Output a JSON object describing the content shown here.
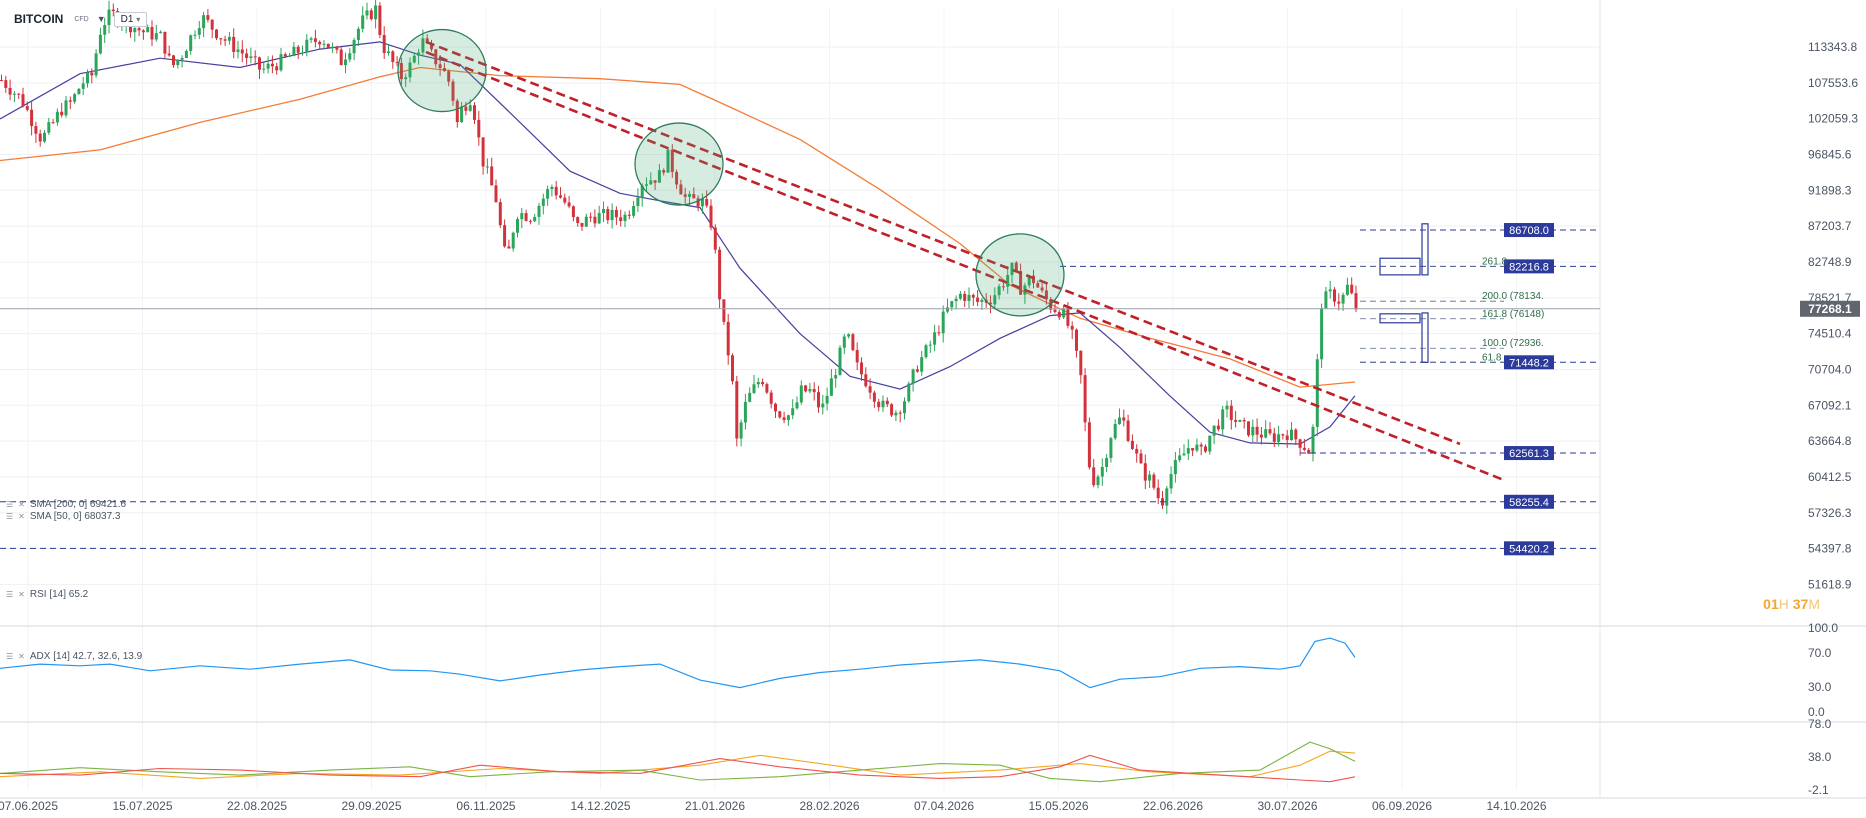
{
  "header": {
    "symbol": "BITCOIN",
    "instrument": "CFD",
    "timeframe": "D1"
  },
  "indicators": {
    "sma200": {
      "label": "SMA [200, 0] 69421.6",
      "color": "#f47c37"
    },
    "sma50": {
      "label": "SMA [50, 0] 68037.3",
      "color": "#4a3e9e"
    },
    "rsi": {
      "label": "RSI [14] 65.2",
      "color": "#2196f3"
    },
    "adx": {
      "label": "ADX [14] 42.7, 32.6, 13.9",
      "colors": [
        "#f5a623",
        "#7cb342",
        "#ef5350"
      ]
    }
  },
  "countdown": {
    "hours": "01",
    "h": "H",
    "minutes": "37",
    "m": "M"
  },
  "colors": {
    "up": "#2aa55a",
    "down": "#d2323c",
    "trend": "#c0202a",
    "level": "#2b3a9b",
    "fib": "#2f6e4a",
    "circle": "#2e7d5b"
  },
  "chart_data": {
    "type": "candlestick",
    "price_axis": {
      "ticks": [
        "113343.8",
        "107553.6",
        "102059.3",
        "96845.6",
        "91898.3",
        "87203.7",
        "82748.9",
        "78521.7",
        "74510.4",
        "70704.0",
        "67092.1",
        "63664.8",
        "60412.5",
        "57326.3",
        "54397.8",
        "51618.9"
      ]
    },
    "x_axis": {
      "ticks": [
        "07.06.2025",
        "15.07.2025",
        "22.08.2025",
        "29.09.2025",
        "06.11.2025",
        "14.12.2025",
        "21.01.2026",
        "28.02.2026",
        "07.04.2026",
        "15.05.2026",
        "22.06.2026",
        "30.07.2026",
        "06.09.2026",
        "14.10.2026"
      ]
    },
    "price_series": [
      [
        0,
        108000
      ],
      [
        20,
        105000
      ],
      [
        40,
        99000
      ],
      [
        50,
        101000
      ],
      [
        60,
        103500
      ],
      [
        70,
        104500
      ],
      [
        80,
        107500
      ],
      [
        90,
        108500
      ],
      [
        100,
        117000
      ],
      [
        110,
        119000
      ],
      [
        120,
        118000
      ],
      [
        140,
        116000
      ],
      [
        160,
        115000
      ],
      [
        170,
        110000
      ],
      [
        180,
        112000
      ],
      [
        200,
        118500
      ],
      [
        220,
        115000
      ],
      [
        240,
        112500
      ],
      [
        260,
        109500
      ],
      [
        280,
        111000
      ],
      [
        300,
        113000
      ],
      [
        320,
        115000
      ],
      [
        340,
        111000
      ],
      [
        350,
        114000
      ],
      [
        360,
        117500
      ],
      [
        375,
        120000
      ],
      [
        380,
        114000
      ],
      [
        390,
        111000
      ],
      [
        400,
        108500
      ],
      [
        410,
        110500
      ],
      [
        420,
        114500
      ],
      [
        430,
        112000
      ],
      [
        440,
        110000
      ],
      [
        450,
        107000
      ],
      [
        455,
        101000
      ],
      [
        460,
        103500
      ],
      [
        470,
        105500
      ],
      [
        480,
        96500
      ],
      [
        495,
        90500
      ],
      [
        500,
        86000
      ],
      [
        505,
        82500
      ],
      [
        515,
        89000
      ],
      [
        530,
        88500
      ],
      [
        550,
        92500
      ],
      [
        565,
        90000
      ],
      [
        575,
        87000
      ],
      [
        590,
        88500
      ],
      [
        610,
        88500
      ],
      [
        625,
        88500
      ],
      [
        640,
        93000
      ],
      [
        660,
        94000
      ],
      [
        665,
        97000
      ],
      [
        675,
        93500
      ],
      [
        685,
        90500
      ],
      [
        700,
        90500
      ],
      [
        710,
        87500
      ],
      [
        715,
        82500
      ],
      [
        720,
        76500
      ],
      [
        730,
        70500
      ],
      [
        735,
        63500
      ],
      [
        745,
        67500
      ],
      [
        760,
        70000
      ],
      [
        775,
        66500
      ],
      [
        790,
        66000
      ],
      [
        800,
        68500
      ],
      [
        810,
        68500
      ],
      [
        820,
        66500
      ],
      [
        835,
        71000
      ],
      [
        845,
        74500
      ],
      [
        855,
        71000
      ],
      [
        865,
        69500
      ],
      [
        880,
        67000
      ],
      [
        895,
        66500
      ],
      [
        905,
        68000
      ],
      [
        915,
        71000
      ],
      [
        930,
        73500
      ],
      [
        945,
        77000
      ],
      [
        960,
        79000
      ],
      [
        975,
        78000
      ],
      [
        990,
        78500
      ],
      [
        1000,
        80000
      ],
      [
        1010,
        82000
      ],
      [
        1020,
        79500
      ],
      [
        1030,
        81000
      ],
      [
        1040,
        79000
      ],
      [
        1050,
        77500
      ],
      [
        1060,
        77000
      ],
      [
        1070,
        74500
      ],
      [
        1080,
        69500
      ],
      [
        1085,
        63500
      ],
      [
        1090,
        60000
      ],
      [
        1100,
        61000
      ],
      [
        1110,
        64500
      ],
      [
        1120,
        66000
      ],
      [
        1130,
        63500
      ],
      [
        1140,
        61000
      ],
      [
        1150,
        60000
      ],
      [
        1160,
        58000
      ],
      [
        1165,
        60000
      ],
      [
        1175,
        61500
      ],
      [
        1190,
        63500
      ],
      [
        1200,
        62500
      ],
      [
        1210,
        64500
      ],
      [
        1225,
        66500
      ],
      [
        1240,
        65000
      ],
      [
        1255,
        64500
      ],
      [
        1270,
        64000
      ],
      [
        1285,
        64500
      ],
      [
        1300,
        63500
      ],
      [
        1310,
        62500
      ],
      [
        1315,
        70000
      ],
      [
        1320,
        78000
      ],
      [
        1330,
        79000
      ],
      [
        1340,
        78000
      ],
      [
        1345,
        80000
      ],
      [
        1355,
        77268.1
      ]
    ],
    "sma200_series": [
      [
        0,
        96000
      ],
      [
        100,
        97500
      ],
      [
        200,
        101500
      ],
      [
        300,
        105000
      ],
      [
        380,
        108500
      ],
      [
        420,
        110000
      ],
      [
        500,
        108700
      ],
      [
        600,
        108200
      ],
      [
        680,
        107300
      ],
      [
        720,
        104500
      ],
      [
        800,
        99000
      ],
      [
        880,
        92000
      ],
      [
        960,
        85000
      ],
      [
        1010,
        80000
      ],
      [
        1080,
        76200
      ],
      [
        1150,
        74000
      ],
      [
        1230,
        71800
      ],
      [
        1300,
        68900
      ],
      [
        1355,
        69421.6
      ]
    ],
    "sma50_series": [
      [
        0,
        102000
      ],
      [
        80,
        109000
      ],
      [
        160,
        111500
      ],
      [
        240,
        110000
      ],
      [
        320,
        113000
      ],
      [
        380,
        114200
      ],
      [
        420,
        112000
      ],
      [
        460,
        110500
      ],
      [
        520,
        101500
      ],
      [
        570,
        94500
      ],
      [
        620,
        91500
      ],
      [
        660,
        90500
      ],
      [
        700,
        89600
      ],
      [
        740,
        82000
      ],
      [
        800,
        74500
      ],
      [
        850,
        70000
      ],
      [
        900,
        68700
      ],
      [
        950,
        71000
      ],
      [
        1000,
        74000
      ],
      [
        1050,
        76500
      ],
      [
        1080,
        76800
      ],
      [
        1120,
        73000
      ],
      [
        1170,
        68000
      ],
      [
        1210,
        64500
      ],
      [
        1250,
        63500
      ],
      [
        1300,
        63400
      ],
      [
        1330,
        65000
      ],
      [
        1355,
        68037.3
      ]
    ],
    "trendlines": [
      [
        [
          426,
          114200
        ],
        [
          1460,
          63400
        ]
      ],
      [
        [
          426,
          112500
        ],
        [
          1505,
          60100
        ]
      ]
    ],
    "circles": [
      {
        "x": 442,
        "price": 109500
      },
      {
        "x": 679,
        "price": 95500
      },
      {
        "x": 1020,
        "price": 81200
      }
    ],
    "levels": [
      {
        "price": 86708.0,
        "label": "86708.0",
        "x_from": 1360
      },
      {
        "price": 82216.8,
        "label": "82216.8",
        "x_from": 1060
      },
      {
        "price": 71448.2,
        "label": "71448.2",
        "x_from": 1360
      },
      {
        "price": 62561.3,
        "label": "62561.3",
        "x_from": 1300
      },
      {
        "price": 58255.4,
        "label": "58255.4",
        "x_from": 0
      },
      {
        "price": 54420.2,
        "label": "54420.2",
        "x_from": 0
      }
    ],
    "fibs": [
      {
        "price": 82216.8,
        "label": "261.8"
      },
      {
        "price": 78134,
        "label": "200.0 (78134."
      },
      {
        "price": 76148,
        "label": "161.8 (76148)"
      },
      {
        "price": 72936,
        "label": "100.0 (72936."
      },
      {
        "price": 71448.2,
        "label": "61.8"
      }
    ],
    "current_price": {
      "value": 77268.1,
      "label": "77268.1"
    },
    "rsi": {
      "axis": [
        "100.0",
        "70.0",
        "30.0",
        "0.0"
      ],
      "last": 65.2,
      "series": [
        [
          0,
          52
        ],
        [
          40,
          57
        ],
        [
          80,
          55
        ],
        [
          110,
          57
        ],
        [
          150,
          49
        ],
        [
          200,
          55
        ],
        [
          250,
          51
        ],
        [
          300,
          57
        ],
        [
          350,
          62
        ],
        [
          390,
          50
        ],
        [
          430,
          49
        ],
        [
          460,
          45
        ],
        [
          500,
          37
        ],
        [
          540,
          44
        ],
        [
          580,
          50
        ],
        [
          620,
          54
        ],
        [
          660,
          57
        ],
        [
          700,
          38
        ],
        [
          740,
          29
        ],
        [
          780,
          40
        ],
        [
          820,
          47
        ],
        [
          860,
          51
        ],
        [
          900,
          56
        ],
        [
          940,
          59
        ],
        [
          980,
          62
        ],
        [
          1020,
          57
        ],
        [
          1060,
          49
        ],
        [
          1090,
          29
        ],
        [
          1120,
          39
        ],
        [
          1160,
          42
        ],
        [
          1200,
          52
        ],
        [
          1240,
          54
        ],
        [
          1280,
          51
        ],
        [
          1300,
          55
        ],
        [
          1315,
          84
        ],
        [
          1330,
          88
        ],
        [
          1345,
          82
        ],
        [
          1355,
          65
        ]
      ]
    },
    "adx": {
      "axis": [
        "78.0",
        "38.0",
        "-2.1"
      ],
      "adx": [
        [
          0,
          14
        ],
        [
          100,
          20
        ],
        [
          200,
          12
        ],
        [
          300,
          18
        ],
        [
          400,
          16
        ],
        [
          500,
          24
        ],
        [
          600,
          18
        ],
        [
          700,
          28
        ],
        [
          760,
          40
        ],
        [
          820,
          30
        ],
        [
          900,
          16
        ],
        [
          1000,
          22
        ],
        [
          1080,
          30
        ],
        [
          1150,
          20
        ],
        [
          1250,
          14
        ],
        [
          1300,
          28
        ],
        [
          1330,
          45
        ],
        [
          1355,
          42.7
        ]
      ],
      "pdi": [
        [
          0,
          18
        ],
        [
          80,
          25
        ],
        [
          160,
          20
        ],
        [
          240,
          16
        ],
        [
          330,
          22
        ],
        [
          410,
          26
        ],
        [
          470,
          14
        ],
        [
          550,
          20
        ],
        [
          640,
          22
        ],
        [
          700,
          10
        ],
        [
          780,
          14
        ],
        [
          860,
          22
        ],
        [
          940,
          30
        ],
        [
          1000,
          28
        ],
        [
          1050,
          12
        ],
        [
          1100,
          8
        ],
        [
          1180,
          18
        ],
        [
          1260,
          22
        ],
        [
          1310,
          56
        ],
        [
          1330,
          48
        ],
        [
          1355,
          32.6
        ]
      ],
      "mdi": [
        [
          0,
          18
        ],
        [
          80,
          16
        ],
        [
          160,
          24
        ],
        [
          240,
          22
        ],
        [
          330,
          16
        ],
        [
          420,
          14
        ],
        [
          480,
          28
        ],
        [
          560,
          20
        ],
        [
          640,
          18
        ],
        [
          720,
          36
        ],
        [
          780,
          26
        ],
        [
          860,
          16
        ],
        [
          940,
          12
        ],
        [
          1000,
          14
        ],
        [
          1060,
          26
        ],
        [
          1090,
          40
        ],
        [
          1140,
          22
        ],
        [
          1220,
          16
        ],
        [
          1300,
          10
        ],
        [
          1330,
          8
        ],
        [
          1355,
          13.9
        ]
      ]
    }
  }
}
